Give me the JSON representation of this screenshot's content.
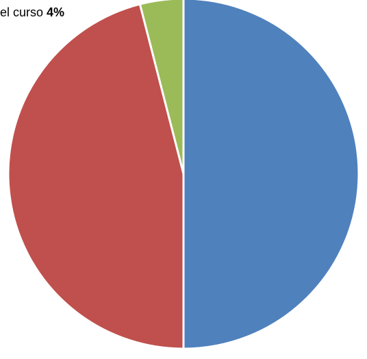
{
  "chart_data": {
    "type": "pie",
    "title": "",
    "slices": [
      {
        "value": 50,
        "color": "#4f81bd"
      },
      {
        "value": 46,
        "color": "#c0504d"
      },
      {
        "value": 4,
        "color": "#9bbb59"
      }
    ],
    "annotations": [
      {
        "text": "el curso",
        "value_label": "4%"
      }
    ],
    "legend": "none"
  }
}
